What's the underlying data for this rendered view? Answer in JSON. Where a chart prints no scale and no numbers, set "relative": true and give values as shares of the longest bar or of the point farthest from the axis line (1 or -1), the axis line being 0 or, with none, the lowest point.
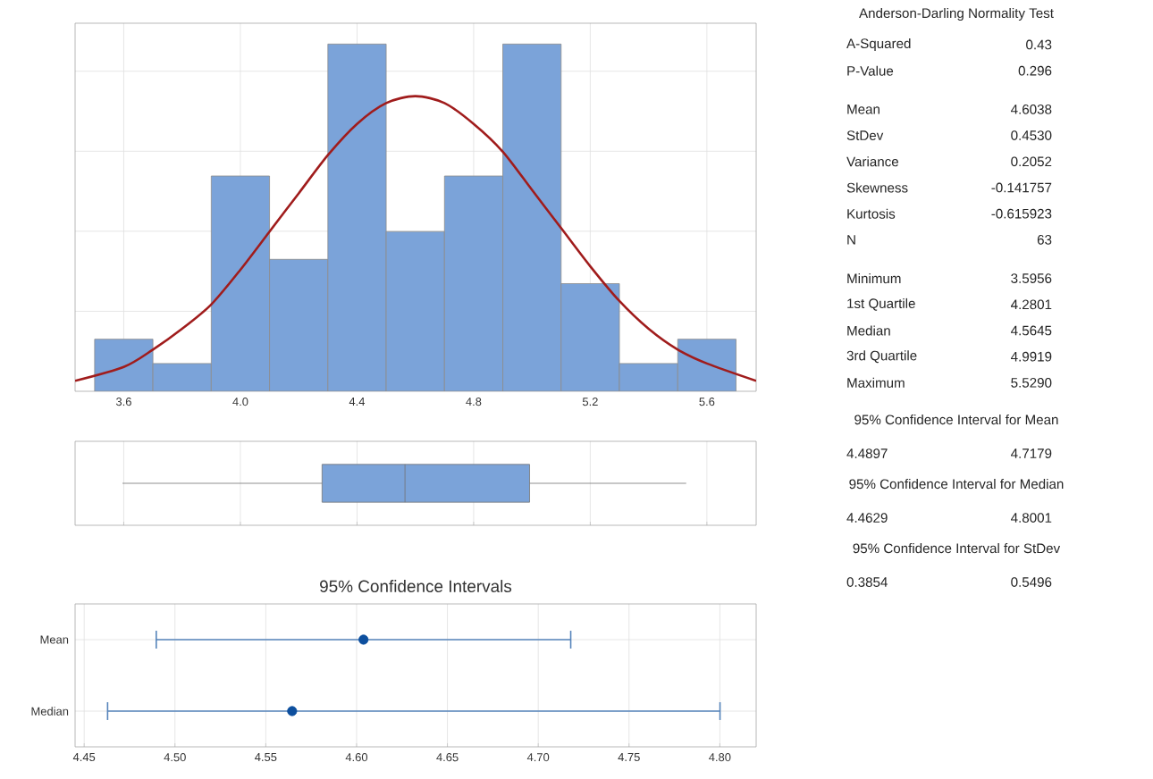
{
  "chart_data": [
    {
      "type": "histogram",
      "relative": true,
      "bins": [
        3.5,
        3.7,
        3.9,
        4.1,
        4.3,
        4.5,
        4.7,
        4.9,
        5.1,
        5.3,
        5.5,
        5.7
      ],
      "values": [
        0.15,
        0.08,
        0.62,
        0.38,
        1,
        0.46,
        0.62,
        1,
        0.31,
        0.08,
        0.15
      ],
      "color": "#7ba3d9",
      "xlim": [
        3.433,
        5.769
      ],
      "xticks": [
        3.6,
        {
          "value": 4,
          "label": "4.0"
        },
        4.4,
        4.8,
        5.2,
        5.6
      ],
      "grid": true,
      "series": [
        {
          "type": "line",
          "color": "#a01c1c",
          "x": [
            3.433,
            3.6,
            3.7,
            3.8,
            3.9,
            4.0,
            4.1,
            4.2,
            4.3,
            4.4,
            4.5,
            4.6,
            4.7,
            4.8,
            4.9,
            5.0,
            5.1,
            5.2,
            5.3,
            5.4,
            5.5,
            5.6,
            5.769
          ],
          "values": [
            0.03,
            0.07,
            0.12,
            0.18,
            0.25,
            0.35,
            0.46,
            0.57,
            0.68,
            0.77,
            0.83,
            0.85,
            0.83,
            0.77,
            0.69,
            0.58,
            0.47,
            0.36,
            0.26,
            0.18,
            0.12,
            0.08,
            0.03
          ]
        }
      ]
    },
    {
      "type": "box",
      "orientation": "horizontal",
      "color": "#7ba3d9",
      "boxes": [
        {
          "low": 3.5956,
          "q1": 4.2801,
          "median": 4.5645,
          "q3": 4.9919,
          "high": 5.529
        }
      ],
      "xlim": [
        3.433,
        5.769
      ],
      "xticks": [
        3.6,
        4,
        4.4,
        4.8,
        5.2,
        5.6
      ],
      "tick_labels": false,
      "grid": "x"
    },
    {
      "type": "scatter",
      "orientation": "horizontal",
      "title": "95% Confidence Intervals",
      "categories": [
        "Mean",
        "Median"
      ],
      "values": [
        4.6038,
        4.5645
      ],
      "errors": [
        [
          4.4897,
          4.7179
        ],
        [
          4.4629,
          4.8001
        ]
      ],
      "color": "#0d4f9e",
      "marker": "circle",
      "xlim": [
        4.445,
        4.82
      ],
      "xticks": [
        {
          "value": 4.45,
          "label": "4.45"
        },
        {
          "value": 4.5,
          "label": "4.50"
        },
        {
          "value": 4.55,
          "label": "4.55"
        },
        {
          "value": 4.6,
          "label": "4.60"
        },
        {
          "value": 4.65,
          "label": "4.65"
        },
        {
          "value": 4.7,
          "label": "4.70"
        },
        {
          "value": 4.75,
          "label": "4.75"
        },
        {
          "value": 4.8,
          "label": "4.80"
        }
      ],
      "grid": true
    },
    {
      "type": "other",
      "title": "Anderson-Darling Normality Test",
      "annotations": [
        "A-Squared",
        "0.43",
        "P-Value",
        "0.296",
        "Mean",
        "4.6038",
        "StDev",
        "0.4530",
        "Variance",
        "0.2052",
        "Skewness",
        "-0.141757",
        "Kurtosis",
        "-0.615923",
        "N",
        "63",
        "Minimum",
        "3.5956",
        "1st Quartile",
        "4.2801",
        "Median",
        "4.5645",
        "3rd Quartile",
        "4.9919",
        "Maximum",
        "5.5290",
        "95% Confidence Interval for Mean",
        "4.4897",
        "4.7179",
        "95% Confidence Interval for Median",
        "4.4629",
        "4.8001",
        "95% Confidence Interval for StDev",
        "0.3854",
        "0.5496"
      ]
    }
  ]
}
